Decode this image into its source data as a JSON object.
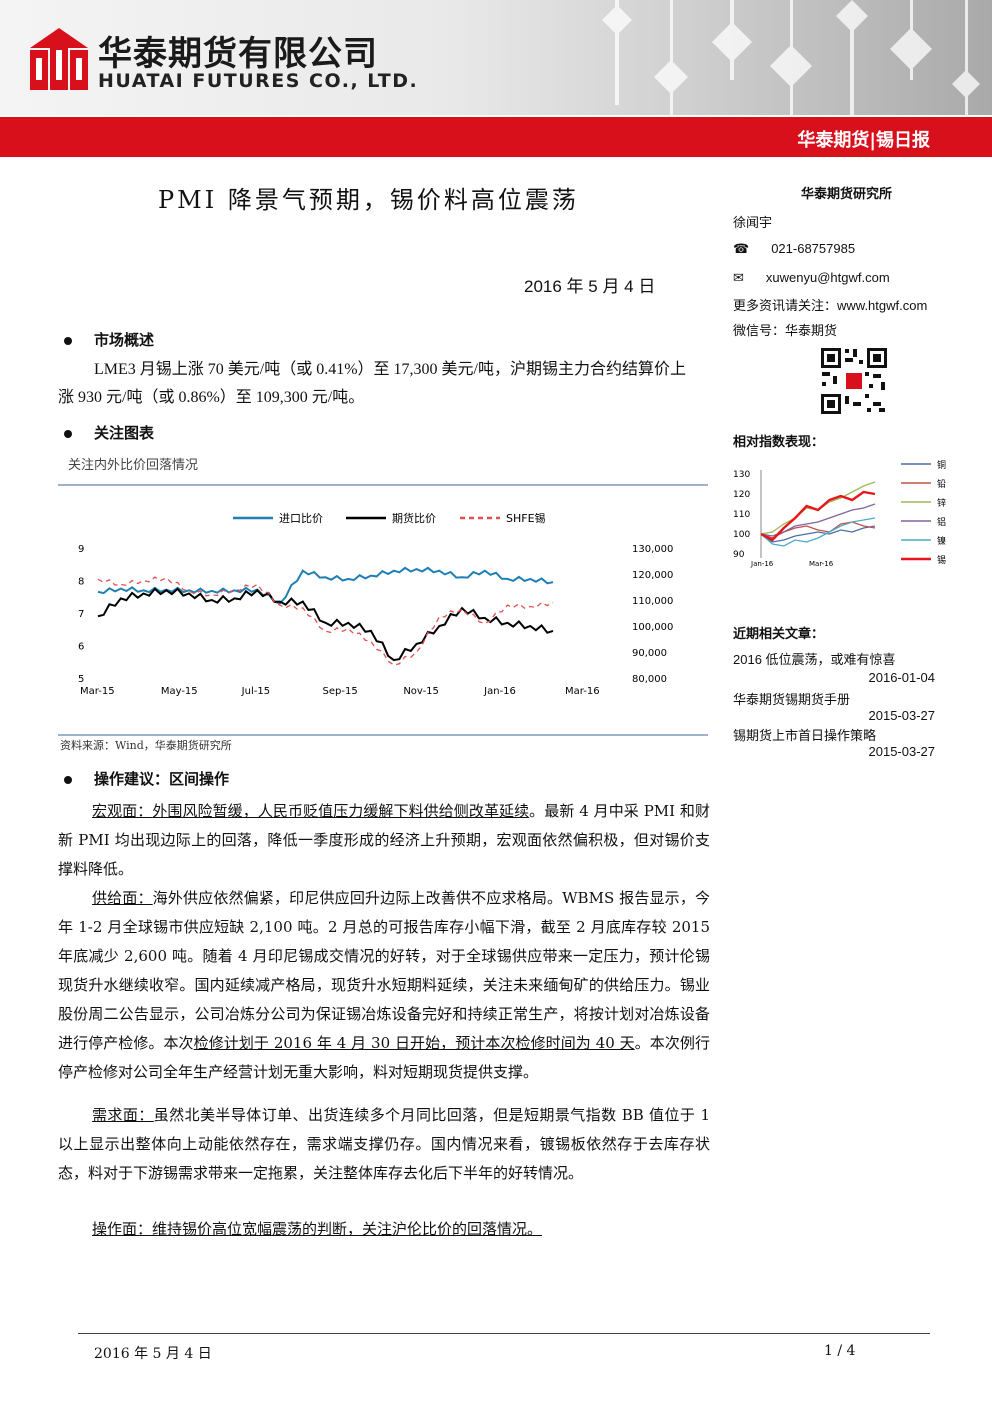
{
  "header": {
    "company_cn": "华泰期货有限公司",
    "company_en": "HUATAI FUTURES CO., LTD.",
    "report_label": "华泰期货|锡日报",
    "brand_red": "#d8101c"
  },
  "title": "PMI 降景气预期，锡价料高位震荡",
  "date": "2016 年 5 月 4 日",
  "sections": {
    "market_overview": {
      "heading": "市场概述",
      "text": "LME3 月锡上涨 70 美元/吨（或 0.41%）至 17,300 美元/吨，沪期锡主力合约结算价上涨 930 元/吨（或 0.86%）至 109,300 元/吨。"
    },
    "focus_chart": {
      "heading": "关注图表",
      "caption": "关注内外比价回落情况",
      "source": "资料来源：Wind，华泰期货研究所"
    },
    "operation": {
      "heading": "操作建议：区间操作",
      "macro_label": "宏观面：",
      "macro_link": "外围风险暂缓，人民币贬值压力缓解下料供给侧改革延续",
      "macro_text": "。最新 4 月中采 PMI 和财新 PMI 均出现边际上的回落，降低一季度形成的经济上升预期，宏观面依然偏积极，但对锡价支撑料降低。",
      "supply_label": "供给面：",
      "supply_text1": "海外供应依然偏紧，印尼供应回升边际上改善供不应求格局。WBMS 报告显示，今年 1-2 月全球锡市供应短缺 2,100 吨。2 月总的可报告库存小幅下滑，截至 2 月底库存较 2015 年底减少 2,600 吨。随着 4 月印尼锡成交情况的好转，对于全球锡供应带来一定压力，预计伦锡现货升水继续收窄。国内延续减产格局，现货升水短期料延续，关注未来缅甸矿的供给压力。锡业股份周二公告显示，公司冶炼分公司为保证锡冶炼设备完好和持续正常生产，将按计划对冶炼设备进行停产检修。本次",
      "supply_link": "检修计划于 2016 年 4 月 30 日开始，预计本次检修时间为 40 天",
      "supply_text2": "。本次例行停产检修对公司全年生产经营计划无重大影响，料对短期现货提供支撑。",
      "demand_label": "需求面：",
      "demand_text": "虽然北美半导体订单、出货连续多个月同比回落，但是短期景气指数 BB 值位于 1 以上显示出整体向上动能依然存在，需求端支撑仍存。国内情况来看，镀锡板依然存于去库存状态，料对于下游锡需求带来一定拖累，关注整体库存去化后下半年的好转情况。",
      "ops_text": "操作面：维持锡价高位宽幅震荡的判断，关注沪伦比价的回落情况。"
    }
  },
  "sidebar": {
    "institute": "华泰期货研究所",
    "analyst": "徐闻宇",
    "phone": "021-68757985",
    "email": "xuwenyu@htgwf.com",
    "more_info": "更多资讯请关注：www.htgwf.com",
    "wechat": "微信号：华泰期货",
    "perf_title": "相对指数表现：",
    "recent_title": "近期相关文章：",
    "articles": [
      {
        "title": "2016 低位震荡，或难有惊喜",
        "date": "2016-01-04"
      },
      {
        "title": "华泰期货锡期货手册",
        "date": "2015-03-27"
      },
      {
        "title": "锡期货上市首日操作策略",
        "date": "2015-03-27"
      }
    ]
  },
  "chart_data": [
    {
      "type": "line",
      "legend": [
        "进口比价",
        "期货比价",
        "SHFE锡"
      ],
      "x_ticks": [
        "Mar-15",
        "May-15",
        "Jul-15",
        "Sep-15",
        "Nov-15",
        "Jan-16",
        "Mar-16"
      ],
      "y_left_ticks": [
        "9",
        "8",
        "7",
        "6",
        "5"
      ],
      "y_right_ticks": [
        "130,000",
        "120,000",
        "110,000",
        "100,000",
        "90,000",
        "80,000"
      ],
      "ylim_left": [
        5,
        9
      ],
      "ylim_right": [
        80000,
        130000
      ],
      "colors": [
        "#1f7fb5",
        "#000000",
        "#e05050"
      ],
      "series": [
        {
          "name": "进口比价",
          "axis": "left",
          "values": [
            7.65,
            7.75,
            7.7,
            7.72,
            7.7,
            7.68,
            7.7,
            7.72,
            7.3,
            8.3,
            8.1,
            8.05,
            8.15,
            8.3,
            8.35,
            8.3,
            8.1,
            8.3,
            8.05,
            8.05,
            7.95
          ]
        },
        {
          "name": "期货比价",
          "axis": "left",
          "values": [
            6.9,
            7.45,
            7.6,
            7.7,
            7.6,
            7.4,
            7.45,
            7.7,
            7.35,
            7.35,
            6.7,
            6.7,
            6.45,
            5.55,
            6.05,
            6.6,
            7.15,
            6.85,
            6.7,
            6.6,
            6.45
          ]
        },
        {
          "name": "SHFE锡",
          "axis": "right",
          "values": [
            118000,
            116000,
            117500,
            118500,
            113500,
            112000,
            114000,
            116000,
            108000,
            107000,
            98000,
            99000,
            94000,
            85000,
            90000,
            103500,
            106500,
            101000,
            108000,
            107500,
            109000
          ]
        }
      ]
    },
    {
      "type": "line",
      "title": "相对指数表现：",
      "x_ticks": [
        "Jan-16",
        "Mar-16"
      ],
      "y_ticks": [
        "130",
        "120",
        "110",
        "100",
        "90"
      ],
      "ylim": [
        88,
        132
      ],
      "series": [
        {
          "name": "铜",
          "color": "#4a6fa5",
          "values": [
            100,
            96,
            97,
            99,
            100,
            101,
            100,
            102,
            101,
            103,
            104
          ]
        },
        {
          "name": "铅",
          "color": "#c0504d",
          "values": [
            100,
            98,
            101,
            103,
            104,
            102,
            101,
            105,
            106,
            104,
            103
          ]
        },
        {
          "name": "锌",
          "color": "#9bbb59",
          "values": [
            100,
            101,
            105,
            108,
            113,
            112,
            116,
            118,
            121,
            124,
            126
          ]
        },
        {
          "name": "铝",
          "color": "#8064a2",
          "values": [
            100,
            99,
            101,
            104,
            105,
            106,
            108,
            110,
            112,
            113,
            115
          ]
        },
        {
          "name": "镍",
          "color": "#4bacc6",
          "values": [
            100,
            95,
            94,
            97,
            96,
            98,
            101,
            104,
            106,
            107,
            108
          ]
        },
        {
          "name": "锡",
          "color": "#e8161c",
          "values": [
            100,
            97,
            103,
            108,
            114,
            112,
            117,
            119,
            117,
            121,
            120
          ]
        }
      ]
    }
  ],
  "footer": {
    "date": "2016 年 5 月 4 日",
    "page": "1 / 4"
  }
}
